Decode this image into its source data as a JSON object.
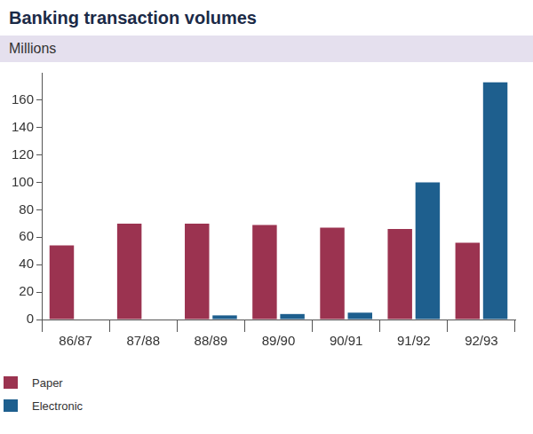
{
  "chart_data": {
    "type": "bar",
    "title": "Banking transaction volumes",
    "subtitle": "Millions",
    "categories": [
      "86/87",
      "87/88",
      "88/89",
      "89/90",
      "90/91",
      "91/92",
      "92/93"
    ],
    "series": [
      {
        "name": "Paper",
        "color": "#9b3350",
        "values": [
          54,
          70,
          70,
          69,
          67,
          66,
          56
        ]
      },
      {
        "name": "Electronic",
        "color": "#1e5f8e",
        "values": [
          null,
          null,
          3,
          4,
          5,
          100,
          173
        ]
      }
    ],
    "ylim": [
      0,
      180
    ],
    "yticks": [
      0,
      20,
      40,
      60,
      80,
      100,
      120,
      140,
      160
    ],
    "grid": false,
    "legend": "bottom"
  }
}
